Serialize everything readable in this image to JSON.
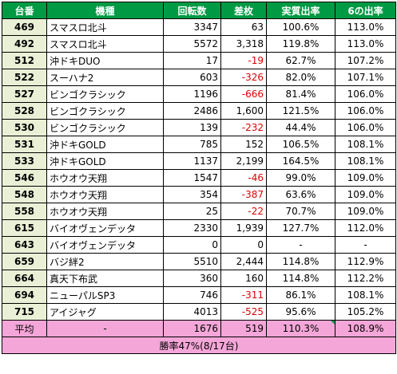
{
  "headers": [
    "台番",
    "機種",
    "回転数",
    "差枚",
    "実質出率",
    "6の出率"
  ],
  "rows": [
    {
      "num": "469",
      "name": "スマスロ北斗",
      "spins": "3347",
      "diff": "63",
      "rate": "100.6%",
      "six": "113.0%",
      "neg": false
    },
    {
      "num": "492",
      "name": "スマスロ北斗",
      "spins": "5572",
      "diff": "3,318",
      "rate": "119.8%",
      "six": "113.0%",
      "neg": false
    },
    {
      "num": "512",
      "name": "沖ドキDUO",
      "spins": "17",
      "diff": "-19",
      "rate": "62.7%",
      "six": "107.2%",
      "neg": true
    },
    {
      "num": "522",
      "name": "スーハナ2",
      "spins": "603",
      "diff": "-326",
      "rate": "82.0%",
      "six": "107.1%",
      "neg": true
    },
    {
      "num": "527",
      "name": "ビンゴクラシック",
      "spins": "1196",
      "diff": "-666",
      "rate": "81.4%",
      "six": "106.0%",
      "neg": true
    },
    {
      "num": "528",
      "name": "ビンゴクラシック",
      "spins": "2486",
      "diff": "1,600",
      "rate": "121.5%",
      "six": "106.0%",
      "neg": false
    },
    {
      "num": "530",
      "name": "ビンゴクラシック",
      "spins": "139",
      "diff": "-232",
      "rate": "44.4%",
      "six": "106.0%",
      "neg": true
    },
    {
      "num": "531",
      "name": "沖ドキGOLD",
      "spins": "785",
      "diff": "152",
      "rate": "106.5%",
      "six": "108.1%",
      "neg": false
    },
    {
      "num": "533",
      "name": "沖ドキGOLD",
      "spins": "1137",
      "diff": "2,199",
      "rate": "164.5%",
      "six": "108.1%",
      "neg": false
    },
    {
      "num": "546",
      "name": "ホウオウ天翔",
      "spins": "1547",
      "diff": "-46",
      "rate": "99.0%",
      "six": "109.0%",
      "neg": true
    },
    {
      "num": "548",
      "name": "ホウオウ天翔",
      "spins": "354",
      "diff": "-387",
      "rate": "63.6%",
      "six": "109.0%",
      "neg": true
    },
    {
      "num": "558",
      "name": "ホウオウ天翔",
      "spins": "25",
      "diff": "-22",
      "rate": "70.7%",
      "six": "109.0%",
      "neg": true
    },
    {
      "num": "615",
      "name": "バイオヴェンデッタ",
      "spins": "2330",
      "diff": "1,939",
      "rate": "127.7%",
      "six": "112.0%",
      "neg": false
    },
    {
      "num": "643",
      "name": "バイオヴェンデッタ",
      "spins": "0",
      "diff": "0",
      "rate": "-",
      "six": "-",
      "neg": false
    },
    {
      "num": "659",
      "name": "バジ絆2",
      "spins": "5510",
      "diff": "2,444",
      "rate": "114.8%",
      "six": "112.9%",
      "neg": false
    },
    {
      "num": "664",
      "name": "真天下布武",
      "spins": "360",
      "diff": "160",
      "rate": "114.8%",
      "six": "112.2%",
      "neg": false
    },
    {
      "num": "694",
      "name": "ニューパルSP3",
      "spins": "746",
      "diff": "-311",
      "rate": "86.1%",
      "six": "108.1%",
      "neg": true
    },
    {
      "num": "715",
      "name": "アイジャグ",
      "spins": "4013",
      "diff": "-525",
      "rate": "95.6%",
      "six": "105.2%",
      "neg": true
    }
  ],
  "average": {
    "label": "平均",
    "name": "-",
    "spins": "1676",
    "diff": "519",
    "rate": "110.3%",
    "six": "108.9%"
  },
  "win_rate": "勝率47%(8/17台)",
  "colors": {
    "header": "#009a44",
    "num_bg": "#eaf0d6",
    "summary_bg": "#f4a6d8",
    "negative": "#e00000"
  }
}
